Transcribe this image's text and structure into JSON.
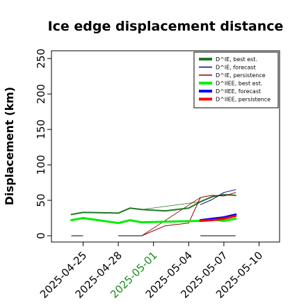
{
  "chart_data": {
    "type": "line",
    "title": "Ice edge displacement distance",
    "xlabel": "",
    "ylabel": "Displacement (km)",
    "ylim": [
      0,
      260
    ],
    "xlim": [
      "2025-04-22",
      "2025-05-12"
    ],
    "y_ticks": [
      "0",
      "50",
      "100",
      "150",
      "200",
      "250"
    ],
    "x_ticks": [
      {
        "label": "2025-04-25",
        "date": "2025-04-25",
        "color": "#000000"
      },
      {
        "label": "2025-04-28",
        "date": "2025-04-28",
        "color": "#000000"
      },
      {
        "label": "2025-05-01",
        "date": "2025-05-01",
        "color": "#1a8a1a"
      },
      {
        "label": "2025-05-04",
        "date": "2025-05-04",
        "color": "#000000"
      },
      {
        "label": "2025-05-07",
        "date": "2025-05-07",
        "color": "#000000"
      },
      {
        "label": "2025-05-10",
        "date": "2025-05-10",
        "color": "#000000"
      }
    ],
    "legend_position": "top-right",
    "series": [
      {
        "name": "D^IE, best est.",
        "color": "#1f7a1f",
        "width": 2,
        "x": [
          "2025-04-24",
          "2025-04-25",
          "2025-04-28",
          "2025-04-29",
          "2025-04-30",
          "2025-05-02",
          "2025-05-04",
          "2025-05-05",
          "2025-05-06",
          "2025-05-07",
          "2025-05-08"
        ],
        "y": [
          30,
          33,
          32,
          39,
          37,
          35,
          39,
          48,
          55,
          58,
          57
        ]
      },
      {
        "name": "D^IE, forecast",
        "color": "#00008b",
        "width": 1,
        "x": [
          "2025-05-05",
          "2025-05-06",
          "2025-05-07",
          "2025-05-08"
        ],
        "y": [
          44,
          51,
          61,
          65
        ]
      },
      {
        "name": "D^IE, persistence",
        "color": "#8b0000",
        "width": 1,
        "x": [
          "2025-04-30",
          "2025-05-02",
          "2025-05-04",
          "2025-05-05",
          "2025-05-06",
          "2025-05-07",
          "2025-05-08"
        ],
        "y": [
          0,
          14,
          18,
          54,
          57,
          56,
          61
        ]
      },
      {
        "name": "D^IIEE, best est.",
        "color": "#00ee00",
        "width": 3,
        "x": [
          "2025-04-24",
          "2025-04-25",
          "2025-04-28",
          "2025-04-29",
          "2025-04-30",
          "2025-05-05",
          "2025-05-06",
          "2025-05-07",
          "2025-05-08"
        ],
        "y": [
          22,
          25,
          18,
          22,
          19,
          21,
          23,
          21,
          24
        ]
      },
      {
        "name": "D^IIEE, forecast",
        "color": "#0000ff",
        "width": 3,
        "x": [
          "2025-05-05",
          "2025-05-06",
          "2025-05-07",
          "2025-05-08"
        ],
        "y": [
          22,
          24,
          26,
          30
        ]
      },
      {
        "name": "D^IIEE, persistence",
        "color": "#ff0000",
        "width": 3,
        "x": [
          "2025-05-05",
          "2025-05-06",
          "2025-05-07",
          "2025-05-08"
        ],
        "y": [
          21,
          22,
          24,
          28
        ]
      }
    ],
    "connectors": [
      {
        "color": "#00ee00",
        "x": [
          "2025-04-30",
          "2025-05-05"
        ],
        "y": [
          19,
          21
        ]
      },
      {
        "color": "#1f7a1f",
        "x": [
          "2025-04-30",
          "2025-05-05"
        ],
        "y": [
          37,
          48
        ]
      },
      {
        "color": "#8b0000",
        "x": [
          "2025-04-30",
          "2025-05-05"
        ],
        "y": [
          0,
          54
        ]
      }
    ],
    "zero_markers": [
      {
        "x": [
          "2025-04-24",
          "2025-04-25"
        ],
        "y": 0
      },
      {
        "x": [
          "2025-04-28",
          "2025-04-30"
        ],
        "y": 0
      },
      {
        "x": [
          "2025-05-05",
          "2025-05-08"
        ],
        "y": 0
      }
    ]
  }
}
